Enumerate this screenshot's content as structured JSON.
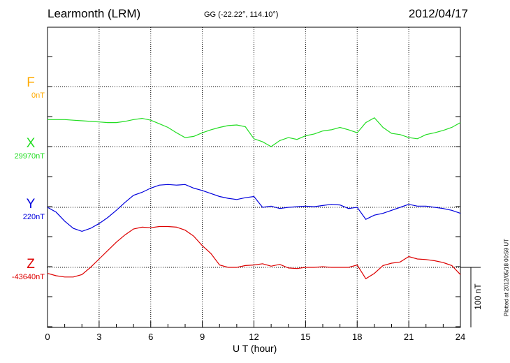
{
  "header": {
    "station": "Learmonth (LRM)",
    "coords": "GG (-22.22°, 114.10°)",
    "date": "2012/04/17"
  },
  "footer": {
    "plotted": "Plotted at 2012/05/18 00:59 UT"
  },
  "chart_data": {
    "type": "line",
    "title": "Learmonth (LRM)",
    "xlabel": "U T (hour)",
    "ylabel": "",
    "xlim": [
      0,
      24
    ],
    "x_ticks": [
      0,
      3,
      6,
      9,
      12,
      15,
      18,
      21,
      24
    ],
    "grid": true,
    "scale_bar_label": "100 nT",
    "scale_bar_nT": 100,
    "components": [
      {
        "name": "F",
        "baseline_label": "0nT",
        "color": "#ffaa00",
        "x": [],
        "values": []
      },
      {
        "name": "X",
        "baseline_label": "29970nT",
        "color": "#22dd22",
        "x": [
          0,
          0.5,
          1,
          1.5,
          2,
          2.5,
          3,
          3.5,
          4,
          4.5,
          5,
          5.5,
          6,
          6.5,
          7,
          7.5,
          8,
          8.5,
          9,
          9.5,
          10,
          10.5,
          11,
          11.5,
          12,
          12.5,
          13,
          13.5,
          14,
          14.5,
          15,
          15.5,
          16,
          16.5,
          17,
          17.5,
          18,
          18.5,
          19,
          19.5,
          20,
          20.5,
          21,
          21.5,
          22,
          22.5,
          23,
          23.5,
          24
        ],
        "values": [
          30015,
          30015,
          30015,
          30014,
          30013,
          30012,
          30011,
          30010,
          30010,
          30012,
          30015,
          30017,
          30014,
          30008,
          30002,
          29993,
          29985,
          29987,
          29993,
          29998,
          30002,
          30005,
          30006,
          30003,
          29983,
          29978,
          29970,
          29980,
          29985,
          29982,
          29988,
          29991,
          29996,
          29998,
          30002,
          29998,
          29993,
          30010,
          30018,
          30002,
          29992,
          29990,
          29985,
          29983,
          29990,
          29993,
          29997,
          30002,
          30010
        ]
      },
      {
        "name": "Y",
        "baseline_label": "220nT",
        "color": "#0000dd",
        "x": [
          0,
          0.5,
          1,
          1.5,
          2,
          2.5,
          3,
          3.5,
          4,
          4.5,
          5,
          5.5,
          6,
          6.5,
          7,
          7.5,
          8,
          8.5,
          9,
          9.5,
          10,
          10.5,
          11,
          11.5,
          12,
          12.5,
          13,
          13.5,
          14,
          14.5,
          15,
          15.5,
          16,
          16.5,
          17,
          17.5,
          18,
          18.5,
          19,
          19.5,
          20,
          20.5,
          21,
          21.5,
          22,
          22.5,
          23,
          23.5,
          24
        ],
        "values": [
          220,
          212,
          197,
          185,
          180,
          185,
          193,
          203,
          215,
          228,
          240,
          245,
          252,
          257,
          258,
          257,
          258,
          252,
          248,
          243,
          238,
          235,
          233,
          236,
          238,
          220,
          222,
          218,
          220,
          221,
          222,
          221,
          223,
          225,
          224,
          218,
          220,
          200,
          207,
          210,
          215,
          220,
          225,
          222,
          222,
          220,
          218,
          215,
          210
        ]
      },
      {
        "name": "Z",
        "baseline_label": "-43640nT",
        "color": "#dd0000",
        "x": [
          0,
          0.5,
          1,
          1.5,
          2,
          2.5,
          3,
          3.5,
          4,
          4.5,
          5,
          5.5,
          6,
          6.5,
          7,
          7.5,
          8,
          8.5,
          9,
          9.5,
          10,
          10.5,
          11,
          11.5,
          12,
          12.5,
          13,
          13.5,
          14,
          14.5,
          15,
          15.5,
          16,
          16.5,
          17,
          17.5,
          18,
          18.5,
          19,
          19.5,
          20,
          20.5,
          21,
          21.5,
          22,
          22.5,
          23,
          23.5,
          24
        ],
        "values": [
          -43650,
          -43654,
          -43656,
          -43656,
          -43652,
          -43640,
          -43626,
          -43612,
          -43598,
          -43586,
          -43576,
          -43573,
          -43574,
          -43572,
          -43572,
          -43573,
          -43578,
          -43588,
          -43604,
          -43617,
          -43636,
          -43640,
          -43640,
          -43637,
          -43636,
          -43634,
          -43638,
          -43635,
          -43641,
          -43642,
          -43640,
          -43640,
          -43639,
          -43640,
          -43640,
          -43640,
          -43636,
          -43659,
          -43650,
          -43637,
          -43633,
          -43631,
          -43622,
          -43626,
          -43627,
          -43629,
          -43632,
          -43637,
          -43652
        ]
      }
    ]
  }
}
